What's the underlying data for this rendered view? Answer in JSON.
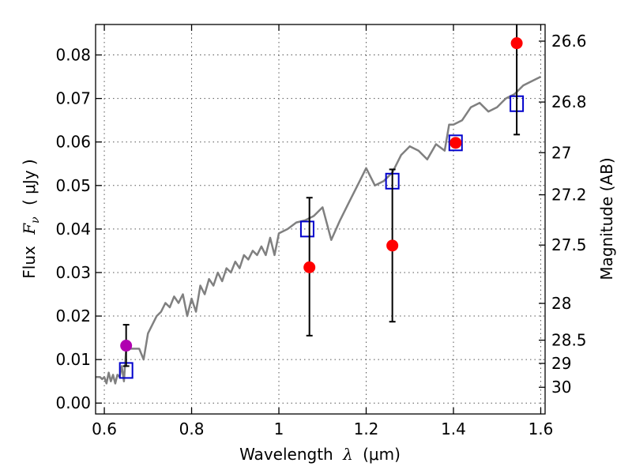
{
  "chart_data": {
    "type": "scatter",
    "xlabel": "Wavelength",
    "xlabel_symbol": "λ",
    "xlabel_unit": "(μm)",
    "ylabel": "Flux",
    "ylabel_symbol": "F",
    "ylabel_subscript": "ν",
    "ylabel_unit": "( μJy )",
    "y2label": "Magnitude (AB)",
    "xlim": [
      0.58,
      1.61
    ],
    "ylim": [
      -0.0025,
      0.087
    ],
    "grid": true,
    "x_ticks": [
      0.6,
      0.8,
      1.0,
      1.2,
      1.4,
      1.6
    ],
    "x_tick_labels": [
      "0.6",
      "0.8",
      "1",
      "1.2",
      "1.4",
      "1.6"
    ],
    "y_ticks": [
      0.0,
      0.01,
      0.02,
      0.03,
      0.04,
      0.05,
      0.06,
      0.07,
      0.08
    ],
    "y_tick_labels": [
      "0.00",
      "0.01",
      "0.02",
      "0.03",
      "0.04",
      "0.05",
      "0.06",
      "0.07",
      "0.08"
    ],
    "y2_ticks": [
      {
        "label": "26.6",
        "mag": 26.6
      },
      {
        "label": "26.8",
        "mag": 26.8
      },
      {
        "label": "27",
        "mag": 27.0
      },
      {
        "label": "27.2",
        "mag": 27.2
      },
      {
        "label": "27.5",
        "mag": 27.5
      },
      {
        "label": "28",
        "mag": 28.0
      },
      {
        "label": "28.5",
        "mag": 28.5
      },
      {
        "label": "29",
        "mag": 29.0
      },
      {
        "label": "30",
        "mag": 30.0
      }
    ],
    "series": [
      {
        "type": "line",
        "color": "#808080",
        "x": [
          0.58,
          0.59,
          0.595,
          0.6,
          0.605,
          0.61,
          0.615,
          0.62,
          0.625,
          0.63,
          0.635,
          0.64,
          0.645,
          0.65,
          0.66,
          0.67,
          0.68,
          0.69,
          0.7,
          0.71,
          0.72,
          0.73,
          0.74,
          0.75,
          0.76,
          0.77,
          0.78,
          0.79,
          0.8,
          0.81,
          0.82,
          0.83,
          0.84,
          0.85,
          0.86,
          0.87,
          0.88,
          0.89,
          0.9,
          0.91,
          0.92,
          0.93,
          0.94,
          0.95,
          0.96,
          0.97,
          0.98,
          0.99,
          1.0,
          1.02,
          1.04,
          1.06,
          1.08,
          1.1,
          1.12,
          1.14,
          1.16,
          1.18,
          1.2,
          1.22,
          1.24,
          1.26,
          1.28,
          1.3,
          1.32,
          1.34,
          1.36,
          1.38,
          1.39,
          1.4,
          1.42,
          1.44,
          1.46,
          1.48,
          1.5,
          1.52,
          1.54,
          1.56,
          1.58,
          1.6
        ],
        "y": [
          0.006,
          0.006,
          0.0055,
          0.006,
          0.0045,
          0.007,
          0.005,
          0.0065,
          0.0045,
          0.0065,
          0.006,
          0.0085,
          0.005,
          0.0125,
          0.0125,
          0.0125,
          0.0125,
          0.01,
          0.016,
          0.018,
          0.02,
          0.021,
          0.023,
          0.022,
          0.0245,
          0.023,
          0.025,
          0.02,
          0.024,
          0.021,
          0.027,
          0.025,
          0.0285,
          0.027,
          0.03,
          0.028,
          0.031,
          0.03,
          0.0325,
          0.031,
          0.034,
          0.033,
          0.035,
          0.034,
          0.036,
          0.034,
          0.038,
          0.034,
          0.039,
          0.04,
          0.0415,
          0.042,
          0.043,
          0.045,
          0.0375,
          0.042,
          0.046,
          0.05,
          0.054,
          0.05,
          0.051,
          0.053,
          0.057,
          0.059,
          0.058,
          0.056,
          0.0595,
          0.058,
          0.064,
          0.064,
          0.065,
          0.068,
          0.069,
          0.067,
          0.068,
          0.07,
          0.071,
          0.073,
          0.074,
          0.075
        ]
      },
      {
        "type": "scatter",
        "marker": "open-square",
        "color": "#0000cc",
        "x": [
          0.65,
          1.065,
          1.26,
          1.405,
          1.545
        ],
        "y": [
          0.0075,
          0.04,
          0.051,
          0.0598,
          0.0688
        ]
      },
      {
        "type": "scatter",
        "marker": "filled-circle",
        "color": "#ff0000",
        "x": [
          1.07,
          1.26,
          1.405,
          1.545
        ],
        "y": [
          0.0312,
          0.0362,
          0.0598,
          0.0827
        ],
        "yerr_low": [
          0.0157,
          0.0175,
          0.0,
          0.021
        ],
        "yerr_high": [
          0.016,
          0.0175,
          0.0,
          0.021
        ]
      },
      {
        "type": "scatter",
        "marker": "filled-circle",
        "color": "#b000b0",
        "x": [
          0.65
        ],
        "y": [
          0.0132
        ],
        "yerr_low": [
          0.0047
        ],
        "yerr_high": [
          0.0048
        ]
      }
    ]
  }
}
